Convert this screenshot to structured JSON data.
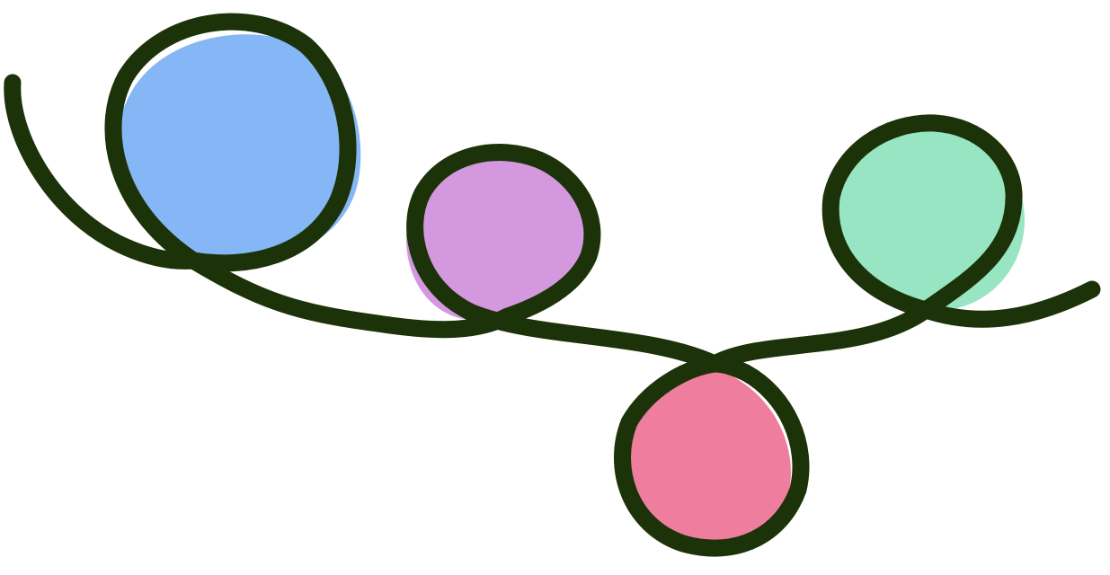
{
  "illustration": {
    "description_role": "decorative",
    "line_color": "#1c3208",
    "background_color": "#ffffff",
    "loops": [
      {
        "name": "blue-loop",
        "fill": "#85b6f5"
      },
      {
        "name": "purple-loop",
        "fill": "#d398de"
      },
      {
        "name": "pink-loop",
        "fill": "#ef7e9e"
      },
      {
        "name": "green-loop",
        "fill": "#97e5c2"
      }
    ]
  }
}
